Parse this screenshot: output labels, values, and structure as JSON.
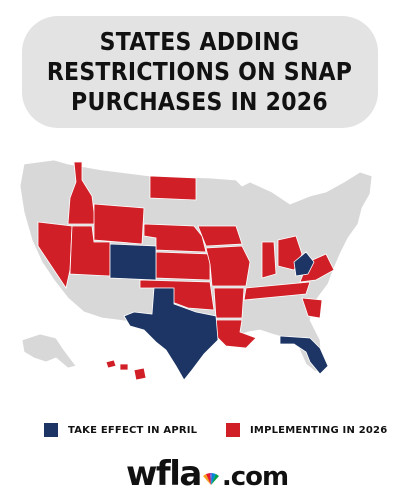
{
  "title": "STATES ADDING\nRESTRICTIONS ON SNAP\nPURCHASES IN 2026",
  "colors": {
    "april": "#1c3564",
    "implementing": "#d11f27",
    "other": "#d8d8d8",
    "border": "#ffffff",
    "title_bg": "#e3e3e3"
  },
  "legend": [
    {
      "label": "TAKE EFFECT IN APRIL",
      "color": "#1c3564"
    },
    {
      "label": "IMPLEMENTING IN 2026",
      "color": "#d11f27"
    }
  ],
  "logo": {
    "main": "wfla",
    "suffix": ".com",
    "icon": "nbc-peacock-icon"
  }
}
